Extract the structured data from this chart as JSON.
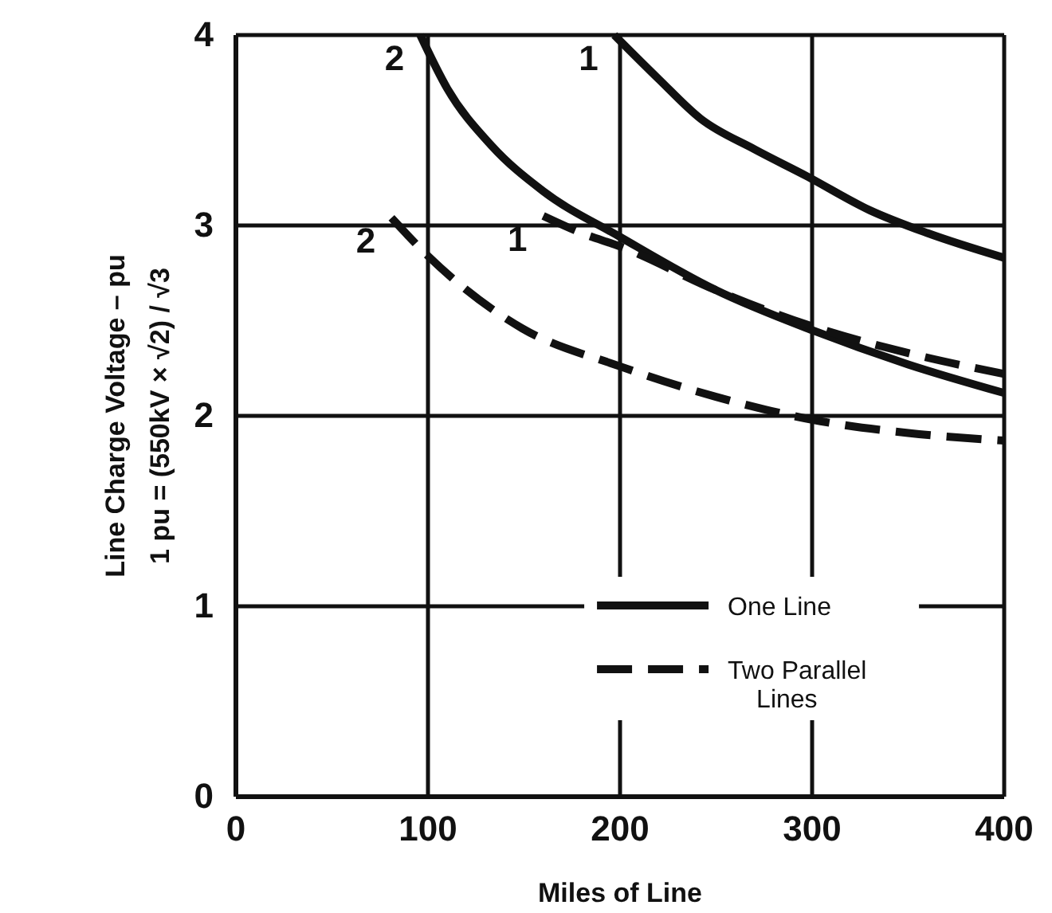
{
  "chart_data": {
    "type": "line",
    "xlabel": "Miles of Line",
    "ylabel": "Line Charge Voltage – pu",
    "xlim": [
      0,
      400
    ],
    "ylim": [
      0,
      4
    ],
    "xticks": [
      0,
      100,
      200,
      300,
      400
    ],
    "yticks": [
      0,
      1,
      2,
      3,
      4
    ],
    "grid": true,
    "legend": "bottom",
    "marker": "none",
    "series": [
      {
        "name": "One Line",
        "color": "#111111",
        "line_style": "solid",
        "x": [
          197,
          220,
          242,
          270,
          297,
          330,
          360,
          400
        ],
        "values": [
          4,
          3.77,
          3.56,
          3.4,
          3.26,
          3.08,
          2.96,
          2.83
        ]
      },
      {
        "color": "#111111",
        "line_style": "solid",
        "x": [
          96,
          110,
          133,
          160,
          200,
          250,
          300,
          350,
          400
        ],
        "values": [
          4,
          3.72,
          3.42,
          3.18,
          2.94,
          2.66,
          2.45,
          2.27,
          2.12
        ]
      },
      {
        "name": "Two Parallel Lines",
        "color": "#111111",
        "line_style": "dashed",
        "x": [
          160,
          180,
          200,
          250,
          300,
          350,
          400
        ],
        "values": [
          3.05,
          2.96,
          2.89,
          2.66,
          2.47,
          2.33,
          2.22
        ]
      },
      {
        "color": "#111111",
        "line_style": "dashed",
        "x": [
          81,
          100,
          149,
          200,
          250,
          300,
          350,
          400
        ],
        "values": [
          3.04,
          2.84,
          2.46,
          2.26,
          2.1,
          1.98,
          1.91,
          1.87
        ]
      }
    ],
    "annotations": [
      {
        "text": "1",
        "x": 197,
        "y": 4
      },
      {
        "text": "2",
        "x": 96,
        "y": 4
      },
      {
        "text": "1",
        "x": 160,
        "y": 3.05
      },
      {
        "text": "2",
        "x": 81,
        "y": 3.04
      },
      "1 pu = (550kV × √2) / √3"
    ]
  }
}
